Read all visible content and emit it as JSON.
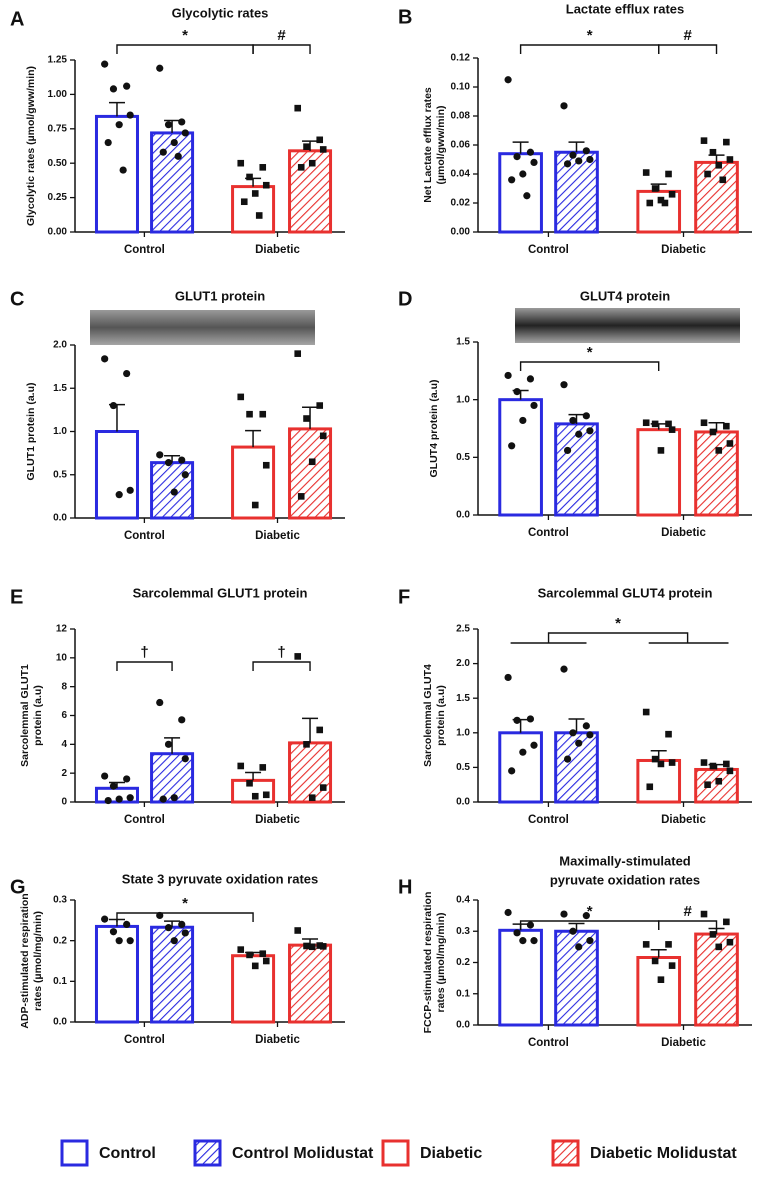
{
  "legend": [
    {
      "name": "Control",
      "color": "#2a2ae0",
      "hatched": false,
      "marker": "circle"
    },
    {
      "name": "Control Molidustat",
      "color": "#2a2ae0",
      "hatched": true,
      "marker": "circle"
    },
    {
      "name": "Diabetic",
      "color": "#e8312f",
      "hatched": false,
      "marker": "square"
    },
    {
      "name": "Diabetic Molidustat",
      "color": "#e8312f",
      "hatched": true,
      "marker": "square"
    }
  ],
  "chart_data": [
    {
      "type": "bar",
      "panel": "A",
      "title": "Glycolytic rates",
      "ylabel": [
        "Glycolytic rates (µmol/gww/min)"
      ],
      "groups": [
        "Control",
        "Diabetic"
      ],
      "ylim": [
        0,
        1.25
      ],
      "yticks": [
        {
          "value": 0,
          "label": "0.00"
        },
        0.25,
        {
          "value": 0.5,
          "label": "0.50"
        },
        0.75,
        {
          "value": 1,
          "label": "1.00"
        },
        1.25
      ],
      "means": [
        0.84,
        0.72,
        0.33,
        0.59
      ],
      "errors": [
        0.1,
        0.09,
        0.06,
        0.07
      ],
      "points": [
        [
          1.22,
          1.06,
          1.04,
          0.85,
          0.78,
          0.65,
          0.45
        ],
        [
          1.19,
          0.8,
          0.78,
          0.72,
          0.65,
          0.58,
          0.55
        ],
        [
          0.5,
          0.47,
          0.4,
          0.34,
          0.28,
          0.22,
          0.12
        ],
        [
          0.9,
          0.67,
          0.62,
          0.6,
          0.5,
          0.47
        ]
      ],
      "brackets": [
        {
          "label": "*",
          "bars": [
            0,
            2
          ]
        },
        {
          "label": "#",
          "bars": [
            2,
            3
          ]
        }
      ]
    },
    {
      "type": "bar",
      "panel": "B",
      "title": "Lactate efflux rates",
      "ylabel": [
        "Net Lactate efflux rates",
        "(µmol/gww/min)"
      ],
      "groups": [
        "Control",
        "Diabetic"
      ],
      "ylim": [
        0,
        0.12
      ],
      "yticks": [
        {
          "value": 0,
          "label": "0.00"
        },
        0.02,
        0.04,
        0.06,
        0.08,
        {
          "value": 0.1,
          "label": "0.10"
        },
        0.12
      ],
      "means": [
        0.054,
        0.055,
        0.028,
        0.048
      ],
      "errors": [
        0.008,
        0.007,
        0.005,
        0.005
      ],
      "points": [
        [
          0.105,
          0.055,
          0.052,
          0.048,
          0.04,
          0.036,
          0.025
        ],
        [
          0.087,
          0.056,
          0.053,
          0.05,
          0.049,
          0.047
        ],
        [
          0.041,
          0.04,
          0.03,
          0.026,
          0.022,
          0.02,
          0.02
        ],
        [
          0.063,
          0.062,
          0.055,
          0.05,
          0.046,
          0.04,
          0.036
        ]
      ],
      "brackets": [
        {
          "label": "*",
          "bars": [
            0,
            2
          ]
        },
        {
          "label": "#",
          "bars": [
            2,
            3
          ]
        }
      ]
    },
    {
      "type": "bar",
      "panel": "C",
      "title": "GLUT1 protein",
      "ylabel": [
        "GLUT1 protein (a.u)"
      ],
      "groups": [
        "Control",
        "Diabetic"
      ],
      "ylim": [
        0,
        2
      ],
      "yticks": [
        {
          "value": 0,
          "label": "0.0"
        },
        0.5,
        {
          "value": 1,
          "label": "1.0"
        },
        1.5,
        {
          "value": 2,
          "label": "2.0"
        }
      ],
      "means": [
        1.0,
        0.64,
        0.82,
        1.03
      ],
      "errors": [
        0.31,
        0.08,
        0.19,
        0.25
      ],
      "points": [
        [
          1.84,
          1.67,
          1.3,
          0.32,
          0.27
        ],
        [
          0.73,
          0.67,
          0.64,
          0.5,
          0.3
        ],
        [
          1.4,
          1.2,
          1.2,
          0.61,
          0.15
        ],
        [
          1.9,
          1.3,
          1.15,
          0.95,
          0.65,
          0.25
        ]
      ],
      "brackets": []
    },
    {
      "type": "bar",
      "panel": "D",
      "title": "GLUT4 protein",
      "ylabel": [
        "GLUT4 protein (a.u)"
      ],
      "groups": [
        "Control",
        "Diabetic"
      ],
      "ylim": [
        0,
        1.5
      ],
      "yticks": [
        {
          "value": 0,
          "label": "0.0"
        },
        0.5,
        {
          "value": 1,
          "label": "1.0"
        },
        1.5
      ],
      "means": [
        1.0,
        0.79,
        0.74,
        0.72
      ],
      "errors": [
        0.08,
        0.08,
        0.05,
        0.08
      ],
      "points": [
        [
          1.21,
          1.18,
          1.07,
          0.95,
          0.82,
          0.6
        ],
        [
          1.13,
          0.86,
          0.82,
          0.73,
          0.7,
          0.56
        ],
        [
          0.8,
          0.79,
          0.79,
          0.74,
          0.56
        ],
        [
          0.8,
          0.77,
          0.72,
          0.62,
          0.56
        ]
      ],
      "brackets": [
        {
          "label": "*",
          "bars": [
            0,
            2
          ]
        }
      ]
    },
    {
      "type": "bar",
      "panel": "E",
      "title": "Sarcolemmal GLUT1 protein",
      "ylabel": [
        "Sarcolemmal GLUT1",
        "protein (a.u)"
      ],
      "groups": [
        "Control",
        "Diabetic"
      ],
      "ylim": [
        0,
        12
      ],
      "yticks": [
        0,
        2,
        4,
        6,
        8,
        10,
        12
      ],
      "means": [
        0.95,
        3.35,
        1.5,
        4.1
      ],
      "errors": [
        0.4,
        1.1,
        0.55,
        1.7
      ],
      "points": [
        [
          1.8,
          1.6,
          1.1,
          0.3,
          0.2,
          0.1
        ],
        [
          6.9,
          5.7,
          4.0,
          3.0,
          0.3,
          0.2
        ],
        [
          2.5,
          2.4,
          1.3,
          0.5,
          0.4
        ],
        [
          10.1,
          5.0,
          4.0,
          1.0,
          0.3
        ]
      ],
      "brackets": [
        {
          "label": "†",
          "bars": [
            0,
            1
          ]
        },
        {
          "label": "†",
          "bars": [
            2,
            3
          ]
        }
      ]
    },
    {
      "type": "bar",
      "panel": "F",
      "title": "Sarcolemmal GLUT4 protein",
      "ylabel": [
        "Sarcolemmal GLUT4",
        "protein (a.u)"
      ],
      "groups": [
        "Control",
        "Diabetic"
      ],
      "ylim": [
        0,
        2.5
      ],
      "yticks": [
        {
          "value": 0,
          "label": "0.0"
        },
        0.5,
        {
          "value": 1,
          "label": "1.0"
        },
        1.5,
        {
          "value": 2,
          "label": "2.0"
        },
        2.5
      ],
      "means": [
        1.0,
        1.0,
        0.6,
        0.47
      ],
      "errors": [
        0.19,
        0.2,
        0.14,
        0.07
      ],
      "points": [
        [
          1.8,
          1.2,
          1.18,
          0.82,
          0.72,
          0.45
        ],
        [
          1.92,
          1.1,
          1.0,
          0.97,
          0.85,
          0.62
        ],
        [
          1.3,
          0.98,
          0.62,
          0.57,
          0.55,
          0.22
        ],
        [
          0.57,
          0.55,
          0.52,
          0.45,
          0.3,
          0.25
        ]
      ],
      "brackets": [
        {
          "label": "*",
          "groups": [
            0,
            1
          ]
        }
      ]
    },
    {
      "type": "bar",
      "panel": "G",
      "title": "State 3 pyruvate oxidation rates",
      "ylabel": [
        "ADP-stimulated respiration",
        "rates (µmol/mg/min)"
      ],
      "groups": [
        "Control",
        "Diabetic"
      ],
      "ylim": [
        0,
        0.3
      ],
      "yticks": [
        {
          "value": 0,
          "label": "0.0"
        },
        0.1,
        0.2,
        0.3
      ],
      "means": [
        0.235,
        0.233,
        0.163,
        0.189
      ],
      "errors": [
        0.017,
        0.015,
        0.008,
        0.015
      ],
      "points": [
        [
          0.253,
          0.24,
          0.222,
          0.2,
          0.2
        ],
        [
          0.262,
          0.24,
          0.232,
          0.219,
          0.2
        ],
        [
          0.178,
          0.168,
          0.165,
          0.15,
          0.138
        ],
        [
          0.225,
          0.188,
          0.187,
          0.186,
          0.185
        ]
      ],
      "brackets": [
        {
          "label": "*",
          "bars": [
            0,
            2
          ]
        }
      ]
    },
    {
      "type": "bar",
      "panel": "H",
      "title": [
        "Maximally-stimulated",
        "pyruvate oxidation rates"
      ],
      "ylabel": [
        "FCCP-stimulated respiration",
        "rates (µmol/mg/min)"
      ],
      "groups": [
        "Control",
        "Diabetic"
      ],
      "ylim": [
        0,
        0.4
      ],
      "yticks": [
        {
          "value": 0,
          "label": "0.0"
        },
        0.1,
        0.2,
        0.3,
        0.4
      ],
      "means": [
        0.303,
        0.3,
        0.216,
        0.291
      ],
      "errors": [
        0.02,
        0.025,
        0.025,
        0.018
      ],
      "points": [
        [
          0.36,
          0.32,
          0.295,
          0.27,
          0.27
        ],
        [
          0.355,
          0.35,
          0.3,
          0.27,
          0.25
        ],
        [
          0.258,
          0.258,
          0.205,
          0.19,
          0.145
        ],
        [
          0.355,
          0.33,
          0.29,
          0.265,
          0.25
        ]
      ],
      "brackets": [
        {
          "label": "*",
          "bars": [
            0,
            2
          ]
        },
        {
          "label": "#",
          "bars": [
            2,
            3
          ]
        }
      ]
    }
  ]
}
